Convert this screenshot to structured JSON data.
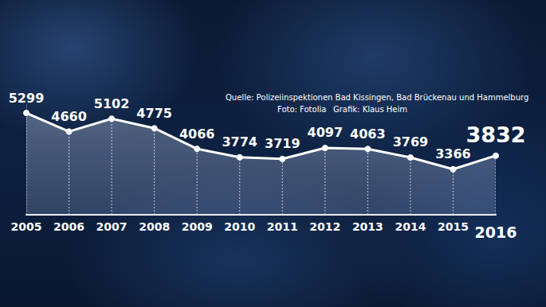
{
  "chart_data": {
    "type": "line",
    "categories": [
      "2005",
      "2006",
      "2007",
      "2008",
      "2009",
      "2010",
      "2011",
      "2012",
      "2013",
      "2014",
      "2015",
      "2016"
    ],
    "values": [
      5299,
      4660,
      5102,
      4775,
      4066,
      3774,
      3719,
      4097,
      4063,
      3769,
      3366,
      3832
    ],
    "ylim": [
      1800,
      5600
    ],
    "annotations": [
      "Quelle: Polizeiinspektionen Bad Kissingen, Bad Brückenau und Hammelburg",
      "Foto: Fotolia",
      "Grafik: Klaus Heim"
    ],
    "data_labels": true,
    "tick_labels": "x",
    "grid": false,
    "color": "#ffffff",
    "marker": "circle"
  }
}
